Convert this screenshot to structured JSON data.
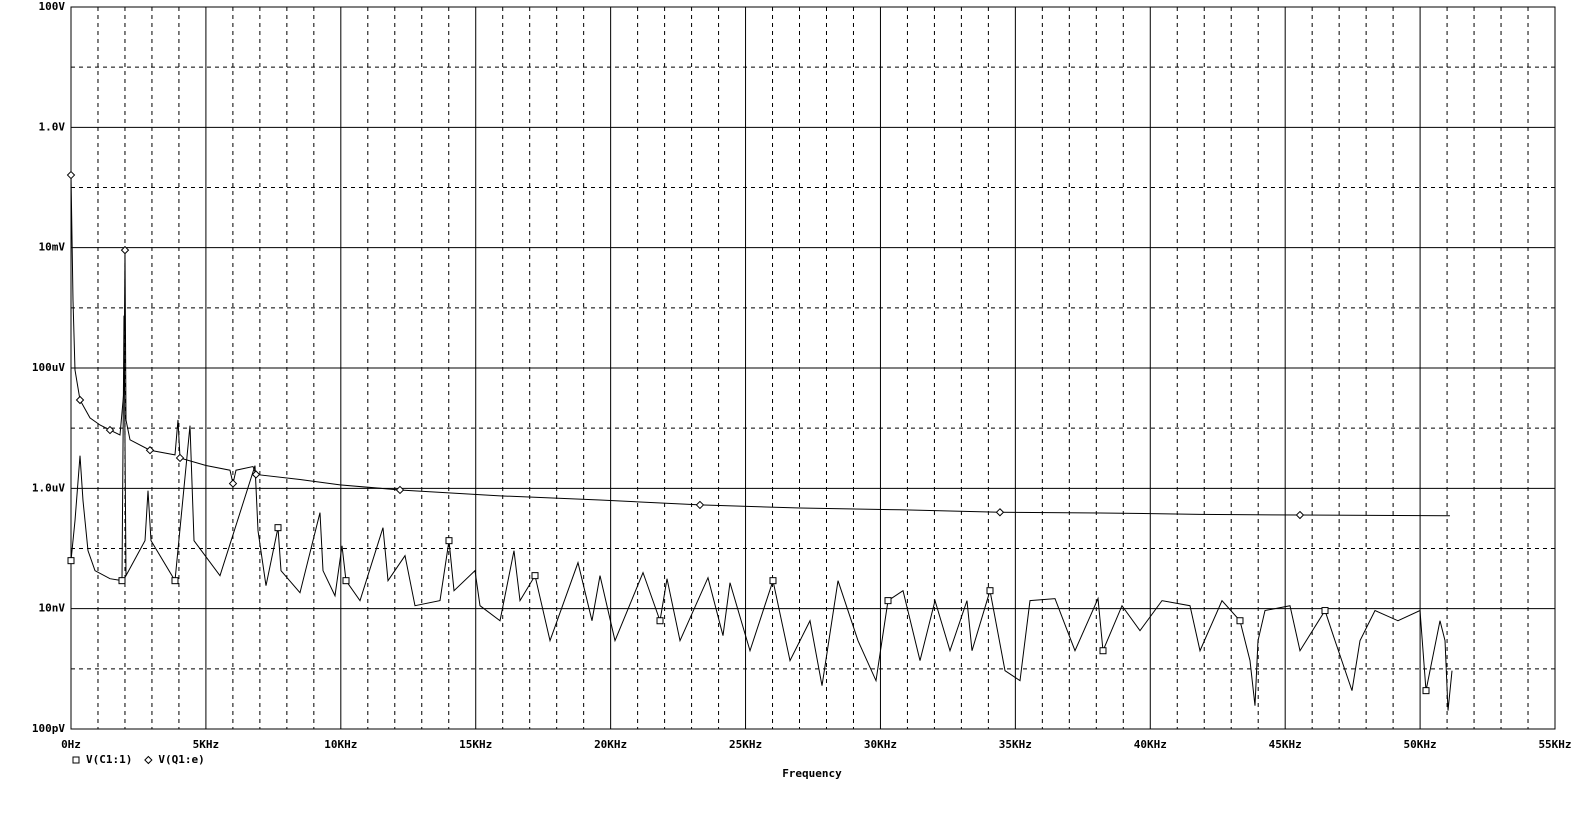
{
  "chart_data": {
    "type": "line",
    "x_label": "Frequency",
    "log_y": true,
    "grid": true,
    "xlim": [
      0,
      55000
    ],
    "ylim": [
      1e-10,
      100
    ],
    "xticks": [
      {
        "value": 0,
        "label": "0Hz"
      },
      {
        "value": 5000,
        "label": "5KHz"
      },
      {
        "value": 10000,
        "label": "10KHz"
      },
      {
        "value": 15000,
        "label": "15KHz"
      },
      {
        "value": 20000,
        "label": "20KHz"
      },
      {
        "value": 25000,
        "label": "25KHz"
      },
      {
        "value": 30000,
        "label": "30KHz"
      },
      {
        "value": 35000,
        "label": "35KHz"
      },
      {
        "value": 40000,
        "label": "40KHz"
      },
      {
        "value": 45000,
        "label": "45KHz"
      },
      {
        "value": 50000,
        "label": "50KHz"
      },
      {
        "value": 55000,
        "label": "55KHz"
      }
    ],
    "xticks_minor": [
      1000,
      2000,
      3000,
      4000,
      6000,
      7000,
      8000,
      9000,
      11000,
      12000,
      13000,
      14000,
      16000,
      17000,
      18000,
      19000,
      21000,
      22000,
      23000,
      24000,
      26000,
      27000,
      28000,
      29000,
      31000,
      32000,
      33000,
      34000,
      36000,
      37000,
      38000,
      39000,
      41000,
      42000,
      43000,
      44000,
      46000,
      47000,
      48000,
      49000,
      51000,
      52000,
      53000,
      54000
    ],
    "yticks": [
      {
        "value": 100,
        "label": "100V"
      },
      {
        "value": 1,
        "label": "1.0V"
      },
      {
        "value": 0.01,
        "label": "10mV"
      },
      {
        "value": 0.0001,
        "label": "100uV"
      },
      {
        "value": 1e-06,
        "label": "1.0uV"
      },
      {
        "value": 1e-08,
        "label": "10nV"
      },
      {
        "value": 1e-10,
        "label": "100pV"
      }
    ],
    "yticks_minor": [
      10,
      0.1,
      0.001,
      1e-05,
      1e-07,
      1e-09
    ],
    "series": [
      {
        "name": "V(C1:1)",
        "color": "#000000",
        "marker": "square",
        "x": [
          0,
          148,
          334,
          445,
          630,
          890,
          1445,
          1890,
          1964,
          2001,
          2038,
          2743,
          2854,
          2965,
          3854,
          4410,
          4559,
          5522,
          6819,
          6931,
          7227,
          7672,
          7783,
          8487,
          9228,
          9340,
          9784,
          10044,
          10192,
          10711,
          11563,
          11749,
          12379,
          12749,
          13676,
          14009,
          14195,
          14973,
          15158,
          15900,
          16418,
          16641,
          17197,
          17753,
          18790,
          19309,
          19606,
          20162,
          21200,
          21830,
          22089,
          22571,
          23608,
          24164,
          24424,
          25165,
          26017,
          26648,
          27389,
          27834,
          28427,
          29168,
          29835,
          30280,
          30836,
          31466,
          32022,
          32577,
          33207,
          33393,
          34060,
          34616,
          35172,
          35542,
          36469,
          37210,
          38063,
          38248,
          38952,
          39619,
          40435,
          41472,
          41843,
          42658,
          43325,
          43696,
          43881,
          43992,
          44252,
          45178,
          45549,
          46476,
          46846,
          47476,
          47773,
          48329,
          49181,
          49997,
          50219,
          50738,
          50924,
          51035,
          51183
        ],
        "values": [
          6.28e-08,
          2.9e-07,
          3.49e-06,
          6.24e-07,
          9.2e-08,
          4.28e-08,
          3.15e-08,
          2.92e-08,
          0.000741,
          6.19e-06,
          3.54e-08,
          1.35e-07,
          9.14e-07,
          1.35e-07,
          2.92e-08,
          1.1e-05,
          1.35e-07,
          3.54e-08,
          2.38e-06,
          1.98e-07,
          2.41e-08,
          2.22e-07,
          4.28e-08,
          1.84e-08,
          3.94e-07,
          4.28e-08,
          1.64e-08,
          1.11e-07,
          2.92e-08,
          1.36e-08,
          2.22e-07,
          2.92e-08,
          7.6e-08,
          1.12e-08,
          1.36e-08,
          1.35e-07,
          1.99e-08,
          4.28e-08,
          1.12e-08,
          6.3e-09,
          9.2e-08,
          1.36e-08,
          3.54e-08,
          2.94e-09,
          5.82e-08,
          6.3e-09,
          3.54e-08,
          2.94e-09,
          3.97e-08,
          6.3e-09,
          3.15e-08,
          2.94e-09,
          3.27e-08,
          3.56e-09,
          2.7e-08,
          2e-09,
          2.92e-08,
          1.37e-09,
          6.3e-09,
          5.25e-10,
          2.92e-08,
          2.94e-09,
          6.36e-10,
          1.36e-08,
          1.99e-08,
          1.37e-09,
          1.36e-08,
          2e-09,
          1.36e-08,
          2e-09,
          1.99e-08,
          9.33e-10,
          6.36e-10,
          1.36e-08,
          1.47e-08,
          2e-09,
          1.47e-08,
          2e-09,
          1.12e-08,
          4.31e-09,
          1.36e-08,
          1.12e-08,
          2e-09,
          1.36e-08,
          6.3e-09,
          1.37e-09,
          2.44e-10,
          2.94e-09,
          9.3e-09,
          1.12e-08,
          2e-09,
          9.3e-09,
          2.94e-09,
          4.34e-10,
          2.94e-09,
          9.3e-09,
          6.3e-09,
          9.3e-09,
          4.34e-10,
          6.3e-09,
          2.94e-09,
          2.02e-10,
          9.33e-10
        ]
      },
      {
        "name": "V(Q1:e)",
        "color": "#000000",
        "marker": "diamond",
        "x": [
          0,
          74,
          148,
          334,
          704,
          1075,
          1445,
          1816,
          1964,
          2001,
          2038,
          2187,
          2928,
          3854,
          3965,
          4040,
          5003,
          5893,
          6004,
          6115,
          6745,
          6856,
          8487,
          9969,
          12193,
          15899,
          19604,
          23310,
          27016,
          30723,
          34429,
          38135,
          41841,
          45547,
          51106
        ],
        "values": [
          0.161,
          0.00135,
          9.27e-05,
          2.94e-05,
          1.48e-05,
          1.13e-05,
          9.3e-06,
          7.7e-06,
          4.3e-05,
          0.0091,
          1.37e-05,
          6.4e-06,
          4.3e-06,
          3.6e-06,
          1.37e-05,
          3.2e-06,
          2.4e-06,
          2e-06,
          1.2e-06,
          2e-06,
          2.3e-06,
          1.7e-06,
          1.4e-06,
          1.14e-06,
          9.4e-07,
          7.5e-07,
          6.4e-07,
          5.3e-07,
          4.7e-07,
          4.4e-07,
          4e-07,
          3.9e-07,
          3.7e-07,
          3.6e-07,
          3.5e-07
        ]
      }
    ]
  }
}
